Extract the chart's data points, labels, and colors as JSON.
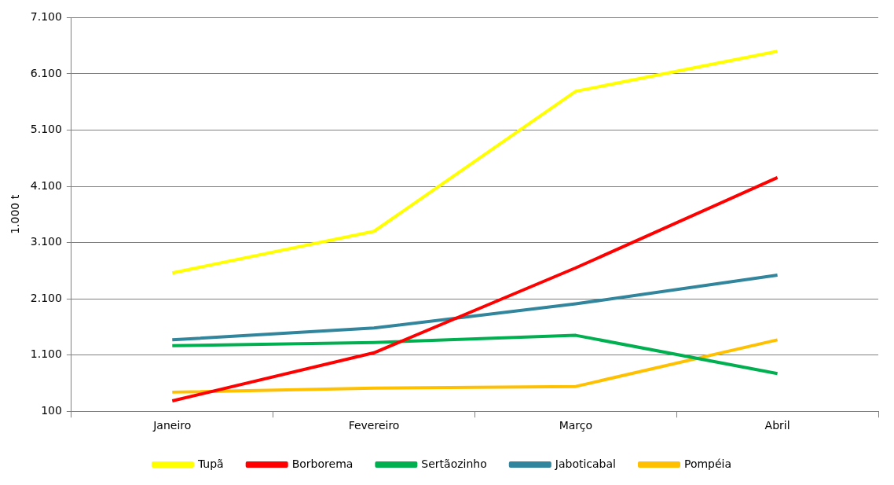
{
  "chart_data": {
    "type": "line",
    "ylabel": "1.000 t",
    "categories": [
      "Janeiro",
      "Fevereiro",
      "Março",
      "Abril"
    ],
    "series": [
      {
        "name": "Tupã",
        "color": "#ffff00",
        "values": [
          2560,
          3300,
          5790,
          6500
        ]
      },
      {
        "name": "Borborema",
        "color": "#ff0000",
        "values": [
          285,
          1140,
          2650,
          4255
        ]
      },
      {
        "name": "Sertãozinho",
        "color": "#00b050",
        "values": [
          1267,
          1324,
          1450,
          770
        ]
      },
      {
        "name": "Jaboticabal",
        "color": "#31859c",
        "values": [
          1370,
          1580,
          2010,
          2520
        ]
      },
      {
        "name": "Pompéia",
        "color": "#ffc000",
        "values": [
          440,
          510,
          541,
          1370
        ]
      }
    ],
    "ylim": [
      100,
      7100
    ],
    "yticks": [
      {
        "value": 100,
        "label": "100"
      },
      {
        "value": 1100,
        "label": "1.100"
      },
      {
        "value": 2100,
        "label": "2.100"
      },
      {
        "value": 3100,
        "label": "3.100"
      },
      {
        "value": 4100,
        "label": "4.100"
      },
      {
        "value": 5100,
        "label": "5.100"
      },
      {
        "value": 6100,
        "label": "6.100"
      },
      {
        "value": 7100,
        "label": "7.100"
      }
    ],
    "grid": "y",
    "legend": "bottom",
    "marker": "none",
    "line_style": "solid"
  }
}
